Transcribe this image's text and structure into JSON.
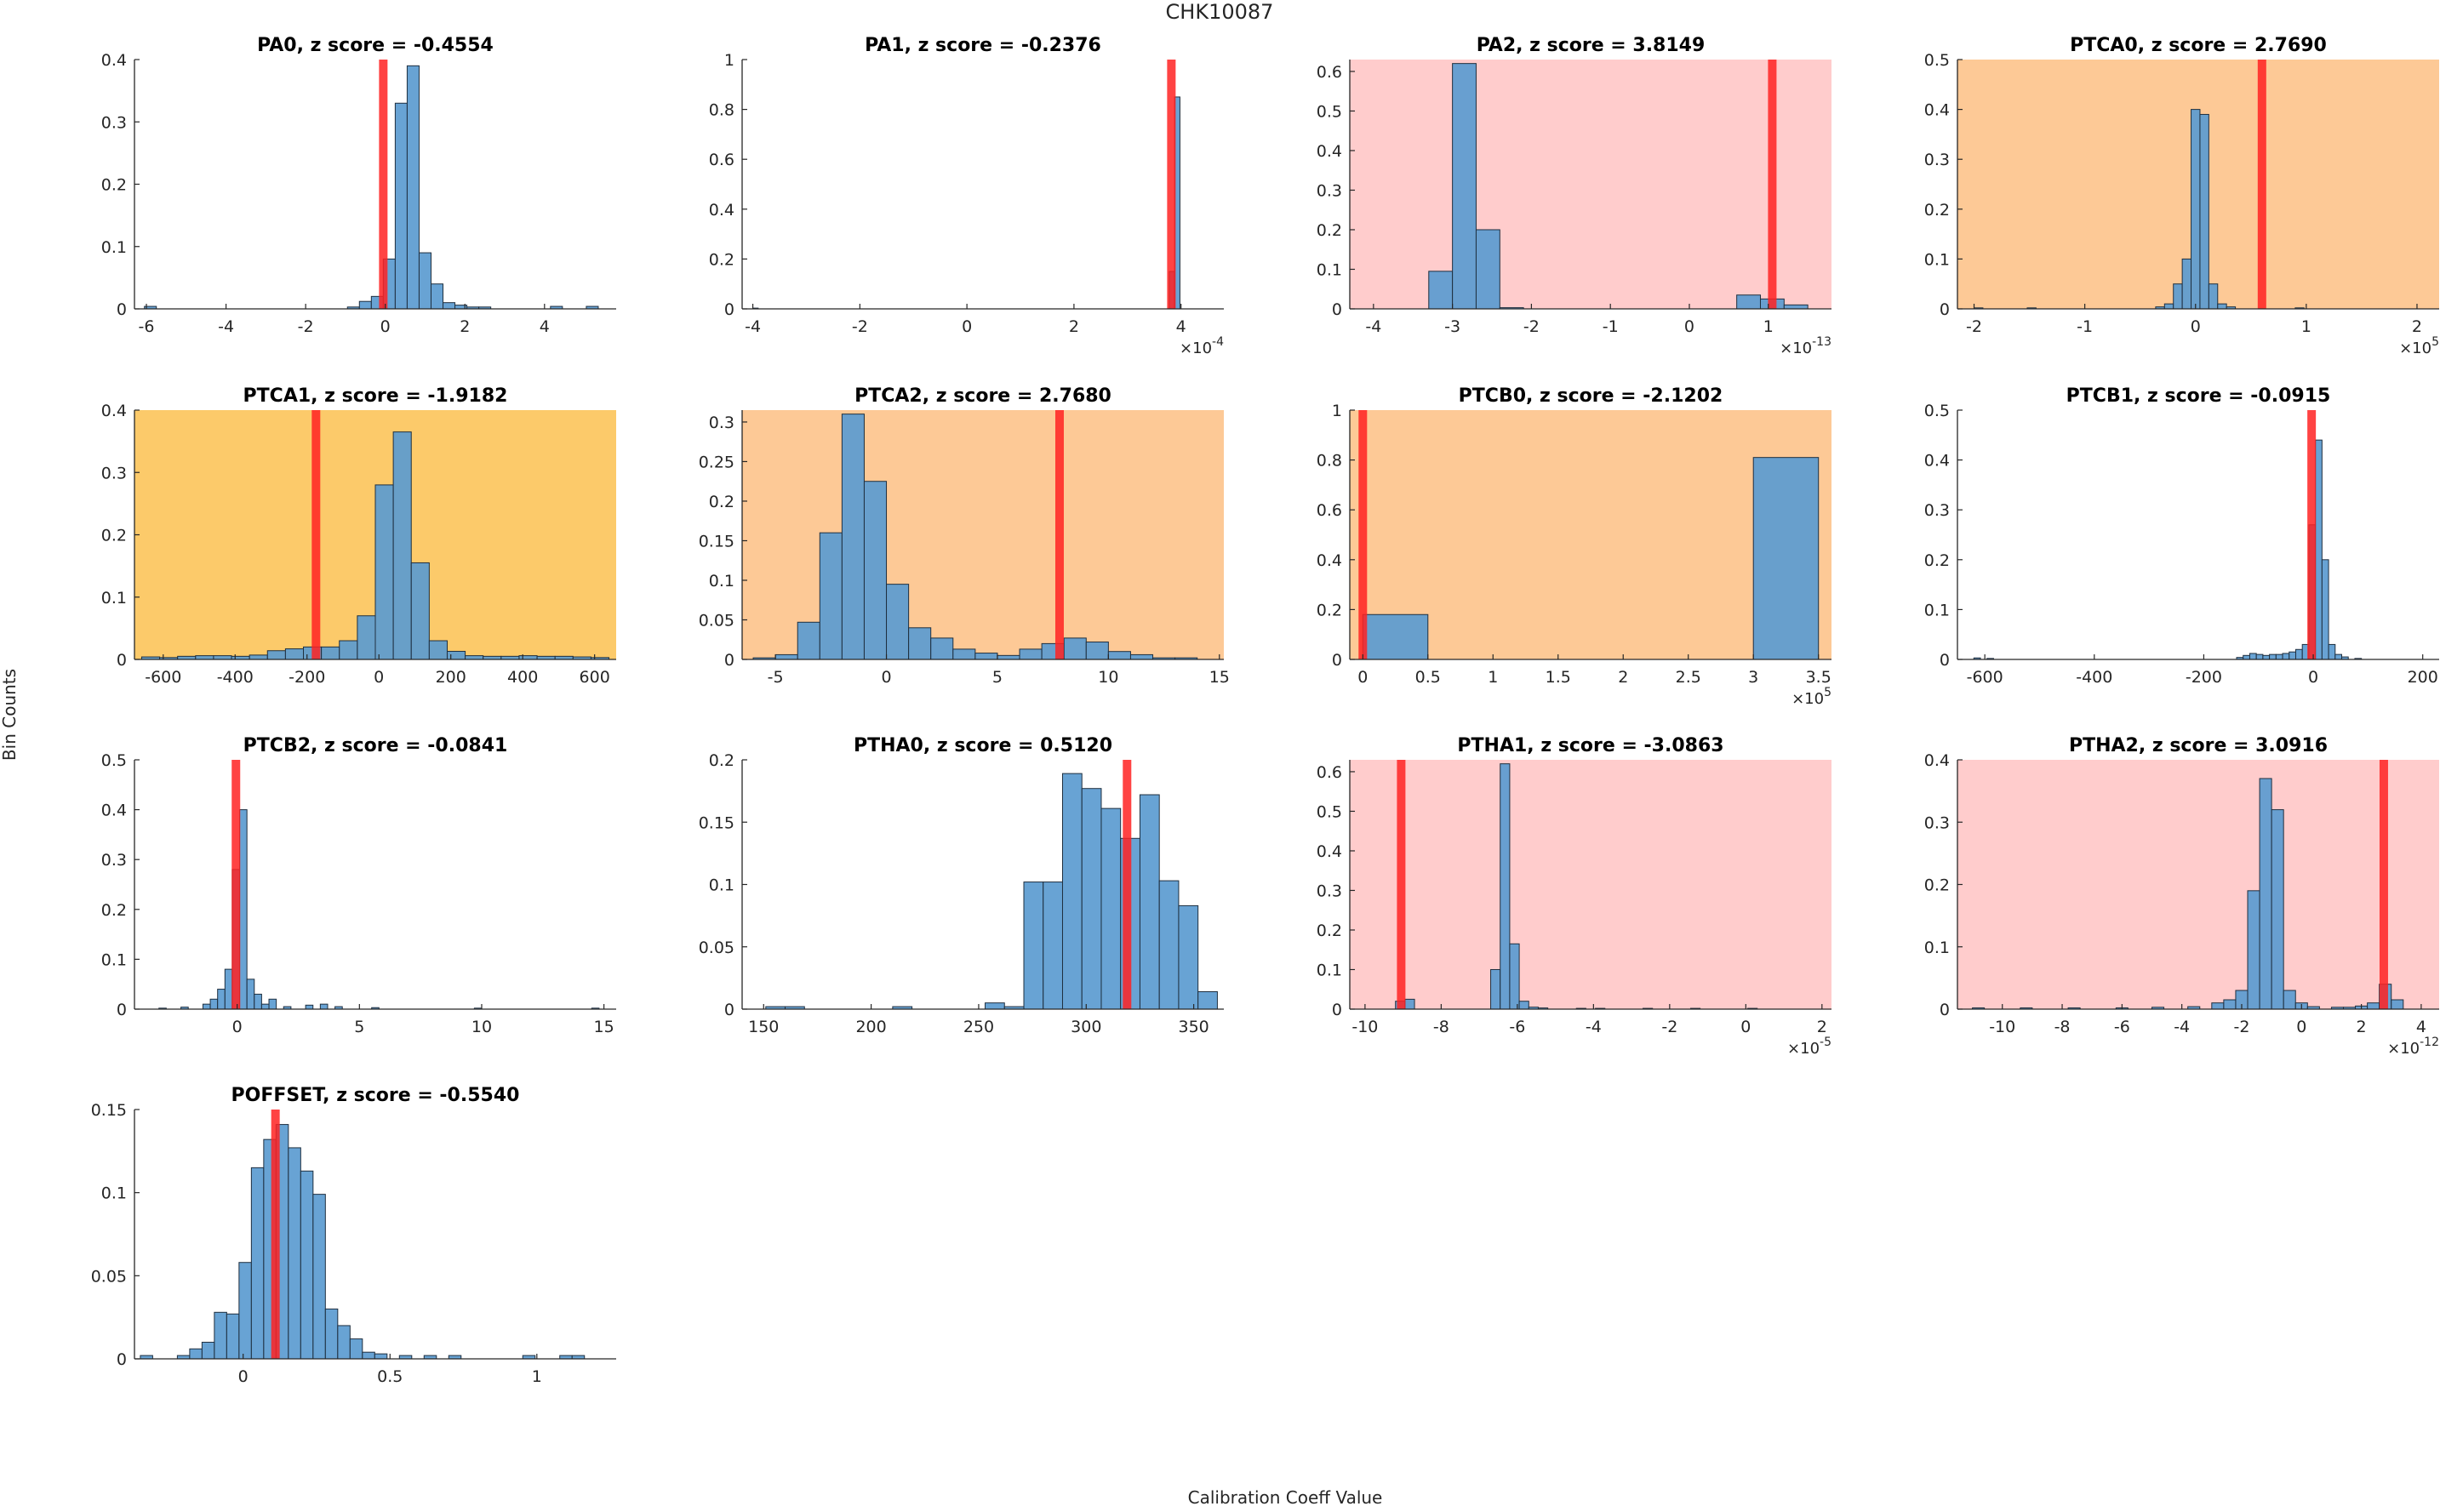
{
  "figure": {
    "suptitle": "CHK10087",
    "xlabel": "Calibration Coeff Value",
    "ylabel": "Bin Counts"
  },
  "colors": {
    "bar": "#5b9bd0",
    "bar_edge": "#1f2f3f",
    "marker": "#ff2222",
    "bg_warn_light": "#fdc996",
    "bg_warn_strong": "#fcca6a",
    "bg_alert": "#ffcccc",
    "axis": "#262626"
  },
  "chart_data": [
    {
      "type": "bar",
      "title": "PA0, z score = -0.4554",
      "bg": "none",
      "xlim": [
        -6.3,
        5.8
      ],
      "ylim": [
        0,
        0.4
      ],
      "xticks": [
        -6,
        -4,
        -2,
        0,
        2,
        4
      ],
      "xtick_labels": [
        "-6",
        "-4",
        "-2",
        "0",
        "2",
        "4"
      ],
      "yticks": [
        0,
        0.1,
        0.2,
        0.3,
        0.4
      ],
      "ytick_labels": [
        "0",
        "0.1",
        "0.2",
        "0.3",
        "0.4"
      ],
      "exponent": "",
      "bin_width": 0.3,
      "bin_starts": [
        -6.05,
        -0.95,
        -0.65,
        -0.35,
        -0.05,
        0.25,
        0.55,
        0.85,
        1.15,
        1.45,
        1.75,
        2.05,
        2.35,
        4.15,
        5.05
      ],
      "values": [
        0.004,
        0.003,
        0.012,
        0.02,
        0.08,
        0.33,
        0.39,
        0.09,
        0.04,
        0.01,
        0.006,
        0.003,
        0.003,
        0.004,
        0.004
      ],
      "marker": -0.05
    },
    {
      "type": "bar",
      "title": "PA1, z score = -0.2376",
      "bg": "none",
      "xlim": [
        -4.2,
        4.8
      ],
      "ylim": [
        0,
        1
      ],
      "xticks": [
        -4,
        -2,
        0,
        2,
        4
      ],
      "xtick_labels": [
        "-4",
        "-2",
        "0",
        "2",
        "4"
      ],
      "yticks": [
        0,
        0.2,
        0.4,
        0.6,
        0.8,
        1
      ],
      "ytick_labels": [
        "0",
        "0.2",
        "0.4",
        "0.6",
        "0.8",
        "1"
      ],
      "exponent": "-4",
      "bin_width": 0.1,
      "bin_starts": [
        -4.0,
        3.78,
        3.88
      ],
      "values": [
        0.003,
        0.15,
        0.85
      ],
      "marker": 3.82
    },
    {
      "type": "bar",
      "title": "PA2, z score = 3.8149",
      "bg": "alert",
      "xlim": [
        -4.3,
        1.8
      ],
      "ylim": [
        0,
        0.63
      ],
      "xticks": [
        -4,
        -3,
        -2,
        -1,
        0,
        1
      ],
      "xtick_labels": [
        "-4",
        "-3",
        "-2",
        "-1",
        "0",
        "1"
      ],
      "yticks": [
        0,
        0.1,
        0.2,
        0.3,
        0.4,
        0.5,
        0.6
      ],
      "ytick_labels": [
        "0",
        "0.1",
        "0.2",
        "0.3",
        "0.4",
        "0.5",
        "0.6"
      ],
      "exponent": "-13",
      "bin_width": 0.3,
      "bin_starts": [
        -3.3,
        -3.0,
        -2.7,
        -2.4,
        0.6,
        0.9,
        1.2
      ],
      "values": [
        0.095,
        0.62,
        0.2,
        0.003,
        0.035,
        0.025,
        0.01
      ],
      "marker": 1.05
    },
    {
      "type": "bar",
      "title": "PTCA0, z score = 2.7690",
      "bg": "warn_light",
      "xlim": [
        -2.15,
        2.2
      ],
      "ylim": [
        0,
        0.5
      ],
      "xticks": [
        -2,
        -1,
        0,
        1,
        2
      ],
      "xtick_labels": [
        "-2",
        "-1",
        "0",
        "1",
        "2"
      ],
      "yticks": [
        0,
        0.1,
        0.2,
        0.3,
        0.4,
        0.5
      ],
      "ytick_labels": [
        "0",
        "0.1",
        "0.2",
        "0.3",
        "0.4",
        "0.5"
      ],
      "exponent": "5",
      "bin_width": 0.08,
      "bin_starts": [
        -2.0,
        -1.52,
        -0.36,
        -0.28,
        -0.2,
        -0.12,
        -0.04,
        0.04,
        0.12,
        0.2,
        0.28,
        0.9
      ],
      "values": [
        0.002,
        0.002,
        0.004,
        0.01,
        0.05,
        0.1,
        0.4,
        0.39,
        0.05,
        0.01,
        0.004,
        0.002
      ],
      "marker": 0.6
    },
    {
      "type": "bar",
      "title": "PTCA1, z score = -1.9182",
      "bg": "warn_strong",
      "xlim": [
        -680,
        660
      ],
      "ylim": [
        0,
        0.4
      ],
      "xticks": [
        -600,
        -400,
        -200,
        0,
        200,
        400,
        600
      ],
      "xtick_labels": [
        "-600",
        "-400",
        "-200",
        "0",
        "200",
        "400",
        "600"
      ],
      "yticks": [
        0,
        0.1,
        0.2,
        0.3,
        0.4
      ],
      "ytick_labels": [
        "0",
        "0.1",
        "0.2",
        "0.3",
        "0.4"
      ],
      "exponent": "",
      "bin_width": 50,
      "bin_starts": [
        -660,
        -610,
        -560,
        -510,
        -460,
        -410,
        -360,
        -310,
        -260,
        -210,
        -160,
        -110,
        -60,
        -10,
        40,
        90,
        140,
        190,
        240,
        290,
        340,
        390,
        440,
        490,
        540,
        590
      ],
      "values": [
        0.004,
        0.003,
        0.005,
        0.006,
        0.006,
        0.005,
        0.007,
        0.014,
        0.017,
        0.02,
        0.02,
        0.03,
        0.07,
        0.28,
        0.365,
        0.155,
        0.03,
        0.013,
        0.006,
        0.005,
        0.005,
        0.006,
        0.005,
        0.005,
        0.004,
        0.003
      ],
      "marker": -175
    },
    {
      "type": "bar",
      "title": "PTCA2, z score = 2.7680",
      "bg": "warn_light",
      "xlim": [
        -6.5,
        15.2
      ],
      "ylim": [
        0,
        0.315
      ],
      "xticks": [
        -5,
        0,
        5,
        10,
        15
      ],
      "xtick_labels": [
        "-5",
        "0",
        "5",
        "10",
        "15"
      ],
      "yticks": [
        0,
        0.05,
        0.1,
        0.15,
        0.2,
        0.25,
        0.3
      ],
      "ytick_labels": [
        "0",
        "0.05",
        "0.1",
        "0.15",
        "0.2",
        "0.25",
        "0.3"
      ],
      "exponent": "",
      "bin_width": 1,
      "bin_starts": [
        -6,
        -5,
        -4,
        -3,
        -2,
        -1,
        0,
        1,
        2,
        3,
        4,
        5,
        6,
        7,
        8,
        9,
        10,
        11,
        12,
        13
      ],
      "values": [
        0.002,
        0.006,
        0.047,
        0.16,
        0.31,
        0.225,
        0.095,
        0.04,
        0.027,
        0.013,
        0.008,
        0.005,
        0.013,
        0.02,
        0.027,
        0.022,
        0.01,
        0.006,
        0.002,
        0.002
      ],
      "marker": 7.8
    },
    {
      "type": "bar",
      "title": "PTCB0, z score = -2.1202",
      "bg": "warn_light",
      "xlim": [
        -0.1,
        3.6
      ],
      "ylim": [
        0,
        1
      ],
      "xticks": [
        0,
        0.5,
        1,
        1.5,
        2,
        2.5,
        3,
        3.5
      ],
      "xtick_labels": [
        "0",
        "0.5",
        "1",
        "1.5",
        "2",
        "2.5",
        "3",
        "3.5"
      ],
      "yticks": [
        0,
        0.2,
        0.4,
        0.6,
        0.8,
        1
      ],
      "ytick_labels": [
        "0",
        "0.2",
        "0.4",
        "0.6",
        "0.8",
        "1"
      ],
      "exponent": "5",
      "bin_width": 0.5,
      "bin_starts": [
        0,
        3.0
      ],
      "values": [
        0.18,
        0.81
      ],
      "marker": 0.0
    },
    {
      "type": "bar",
      "title": "PTCB1, z score = -0.0915",
      "bg": "none",
      "xlim": [
        -650,
        230
      ],
      "ylim": [
        0,
        0.5
      ],
      "xticks": [
        -600,
        -400,
        -200,
        0,
        200
      ],
      "xtick_labels": [
        "-600",
        "-400",
        "-200",
        "0",
        "200"
      ],
      "yticks": [
        0,
        0.1,
        0.2,
        0.3,
        0.4,
        0.5
      ],
      "ytick_labels": [
        "0",
        "0.1",
        "0.2",
        "0.3",
        "0.4",
        "0.5"
      ],
      "exponent": "",
      "bin_width": 12,
      "bin_starts": [
        -620,
        -596,
        -140,
        -128,
        -116,
        -104,
        -92,
        -80,
        -68,
        -56,
        -44,
        -32,
        -20,
        -8,
        4,
        16,
        28,
        40,
        52,
        76
      ],
      "values": [
        0.003,
        0.002,
        0.004,
        0.008,
        0.012,
        0.01,
        0.008,
        0.01,
        0.01,
        0.012,
        0.015,
        0.02,
        0.03,
        0.27,
        0.44,
        0.2,
        0.03,
        0.01,
        0.005,
        0.002
      ],
      "marker": -3
    },
    {
      "type": "bar",
      "title": "PTCB2, z score = -0.0841",
      "bg": "none",
      "xlim": [
        -4.2,
        15.5
      ],
      "ylim": [
        0,
        0.5
      ],
      "xticks": [
        0,
        5,
        10,
        15
      ],
      "xtick_labels": [
        "0",
        "5",
        "10",
        "15"
      ],
      "yticks": [
        0,
        0.1,
        0.2,
        0.3,
        0.4,
        0.5
      ],
      "ytick_labels": [
        "0",
        "0.1",
        "0.2",
        "0.3",
        "0.4",
        "0.5"
      ],
      "exponent": "",
      "bin_width": 0.3,
      "bin_starts": [
        -3.2,
        -2.3,
        -1.4,
        -1.1,
        -0.8,
        -0.5,
        -0.2,
        0.1,
        0.4,
        0.7,
        1.0,
        1.3,
        1.9,
        2.8,
        3.4,
        4.0,
        5.5,
        9.7,
        14.5
      ],
      "values": [
        0.002,
        0.004,
        0.01,
        0.02,
        0.04,
        0.08,
        0.28,
        0.4,
        0.06,
        0.03,
        0.01,
        0.02,
        0.005,
        0.008,
        0.01,
        0.005,
        0.003,
        0.002,
        0.002
      ],
      "marker": -0.05
    },
    {
      "type": "bar",
      "title": "PTHA0, z score = 0.5120",
      "bg": "none",
      "xlim": [
        140,
        364
      ],
      "ylim": [
        0,
        0.2
      ],
      "xticks": [
        150,
        200,
        250,
        300,
        350
      ],
      "xtick_labels": [
        "150",
        "200",
        "250",
        "300",
        "350"
      ],
      "yticks": [
        0,
        0.05,
        0.1,
        0.15,
        0.2
      ],
      "ytick_labels": [
        "0",
        "0.05",
        "0.1",
        "0.15",
        "0.2"
      ],
      "exponent": "",
      "bin_width": 9,
      "bin_starts": [
        151,
        160,
        210,
        253,
        262,
        271,
        280,
        289,
        298,
        307,
        316,
        325,
        334,
        343,
        352
      ],
      "values": [
        0.002,
        0.002,
        0.002,
        0.005,
        0.002,
        0.102,
        0.102,
        0.189,
        0.177,
        0.161,
        0.137,
        0.172,
        0.103,
        0.083,
        0.014
      ],
      "marker": 319
    },
    {
      "type": "bar",
      "title": "PTHA1, z score = -3.0863",
      "bg": "alert",
      "xlim": [
        -10.4,
        2.25
      ],
      "ylim": [
        0,
        0.63
      ],
      "xticks": [
        -10,
        -8,
        -6,
        -4,
        -2,
        0,
        2
      ],
      "xtick_labels": [
        "-10",
        "-8",
        "-6",
        "-4",
        "-2",
        "0",
        "2"
      ],
      "yticks": [
        0,
        0.1,
        0.2,
        0.3,
        0.4,
        0.5,
        0.6
      ],
      "ytick_labels": [
        "0",
        "0.1",
        "0.2",
        "0.3",
        "0.4",
        "0.5",
        "0.6"
      ],
      "exponent": "-5",
      "bin_width": 0.25,
      "bin_starts": [
        -9.2,
        -8.95,
        -6.7,
        -6.45,
        -6.2,
        -5.95,
        -5.7,
        -5.45,
        -4.45,
        -3.95,
        -2.7,
        -1.45,
        0.05
      ],
      "values": [
        0.02,
        0.025,
        0.1,
        0.62,
        0.165,
        0.02,
        0.005,
        0.003,
        0.002,
        0.002,
        0.002,
        0.002,
        0.002
      ],
      "marker": -9.05
    },
    {
      "type": "bar",
      "title": "PTHA2, z score = 3.0916",
      "bg": "alert",
      "xlim": [
        -11.5,
        4.6
      ],
      "ylim": [
        0,
        0.4
      ],
      "xticks": [
        -10,
        -8,
        -6,
        -4,
        -2,
        0,
        2,
        4
      ],
      "xtick_labels": [
        "-10",
        "-8",
        "-6",
        "-4",
        "-2",
        "0",
        "2",
        "4"
      ],
      "yticks": [
        0,
        0.1,
        0.2,
        0.3,
        0.4
      ],
      "ytick_labels": [
        "0",
        "0.1",
        "0.2",
        "0.3",
        "0.4"
      ],
      "exponent": "-12",
      "bin_width": 0.4,
      "bin_starts": [
        -11.0,
        -9.4,
        -7.8,
        -6.2,
        -5.0,
        -3.8,
        -3.0,
        -2.6,
        -2.2,
        -1.8,
        -1.4,
        -1.0,
        -0.6,
        -0.2,
        0.2,
        1.0,
        1.4,
        1.8,
        2.2,
        2.6,
        3.0
      ],
      "values": [
        0.002,
        0.002,
        0.002,
        0.002,
        0.003,
        0.004,
        0.01,
        0.015,
        0.03,
        0.19,
        0.37,
        0.32,
        0.03,
        0.01,
        0.004,
        0.003,
        0.003,
        0.005,
        0.01,
        0.04,
        0.015
      ],
      "marker": 2.75
    },
    {
      "type": "bar",
      "title": "POFFSET, z score = -0.5540",
      "bg": "none",
      "xlim": [
        -0.37,
        1.27
      ],
      "ylim": [
        0,
        0.15
      ],
      "xticks": [
        0,
        0.5,
        1
      ],
      "xtick_labels": [
        "0",
        "0.5",
        "1"
      ],
      "yticks": [
        0,
        0.05,
        0.1,
        0.15
      ],
      "ytick_labels": [
        "0",
        "0.05",
        "0.1",
        "0.15"
      ],
      "exponent": "",
      "bin_width": 0.042,
      "bin_starts": [
        -0.35,
        -0.224,
        -0.182,
        -0.14,
        -0.098,
        -0.056,
        -0.014,
        0.028,
        0.07,
        0.112,
        0.154,
        0.196,
        0.238,
        0.28,
        0.322,
        0.364,
        0.406,
        0.448,
        0.532,
        0.616,
        0.7,
        0.952,
        1.078,
        1.12
      ],
      "values": [
        0.002,
        0.002,
        0.006,
        0.01,
        0.028,
        0.027,
        0.058,
        0.115,
        0.132,
        0.141,
        0.127,
        0.113,
        0.099,
        0.03,
        0.02,
        0.012,
        0.004,
        0.003,
        0.002,
        0.002,
        0.002,
        0.002,
        0.002,
        0.002
      ],
      "marker": 0.11
    }
  ]
}
